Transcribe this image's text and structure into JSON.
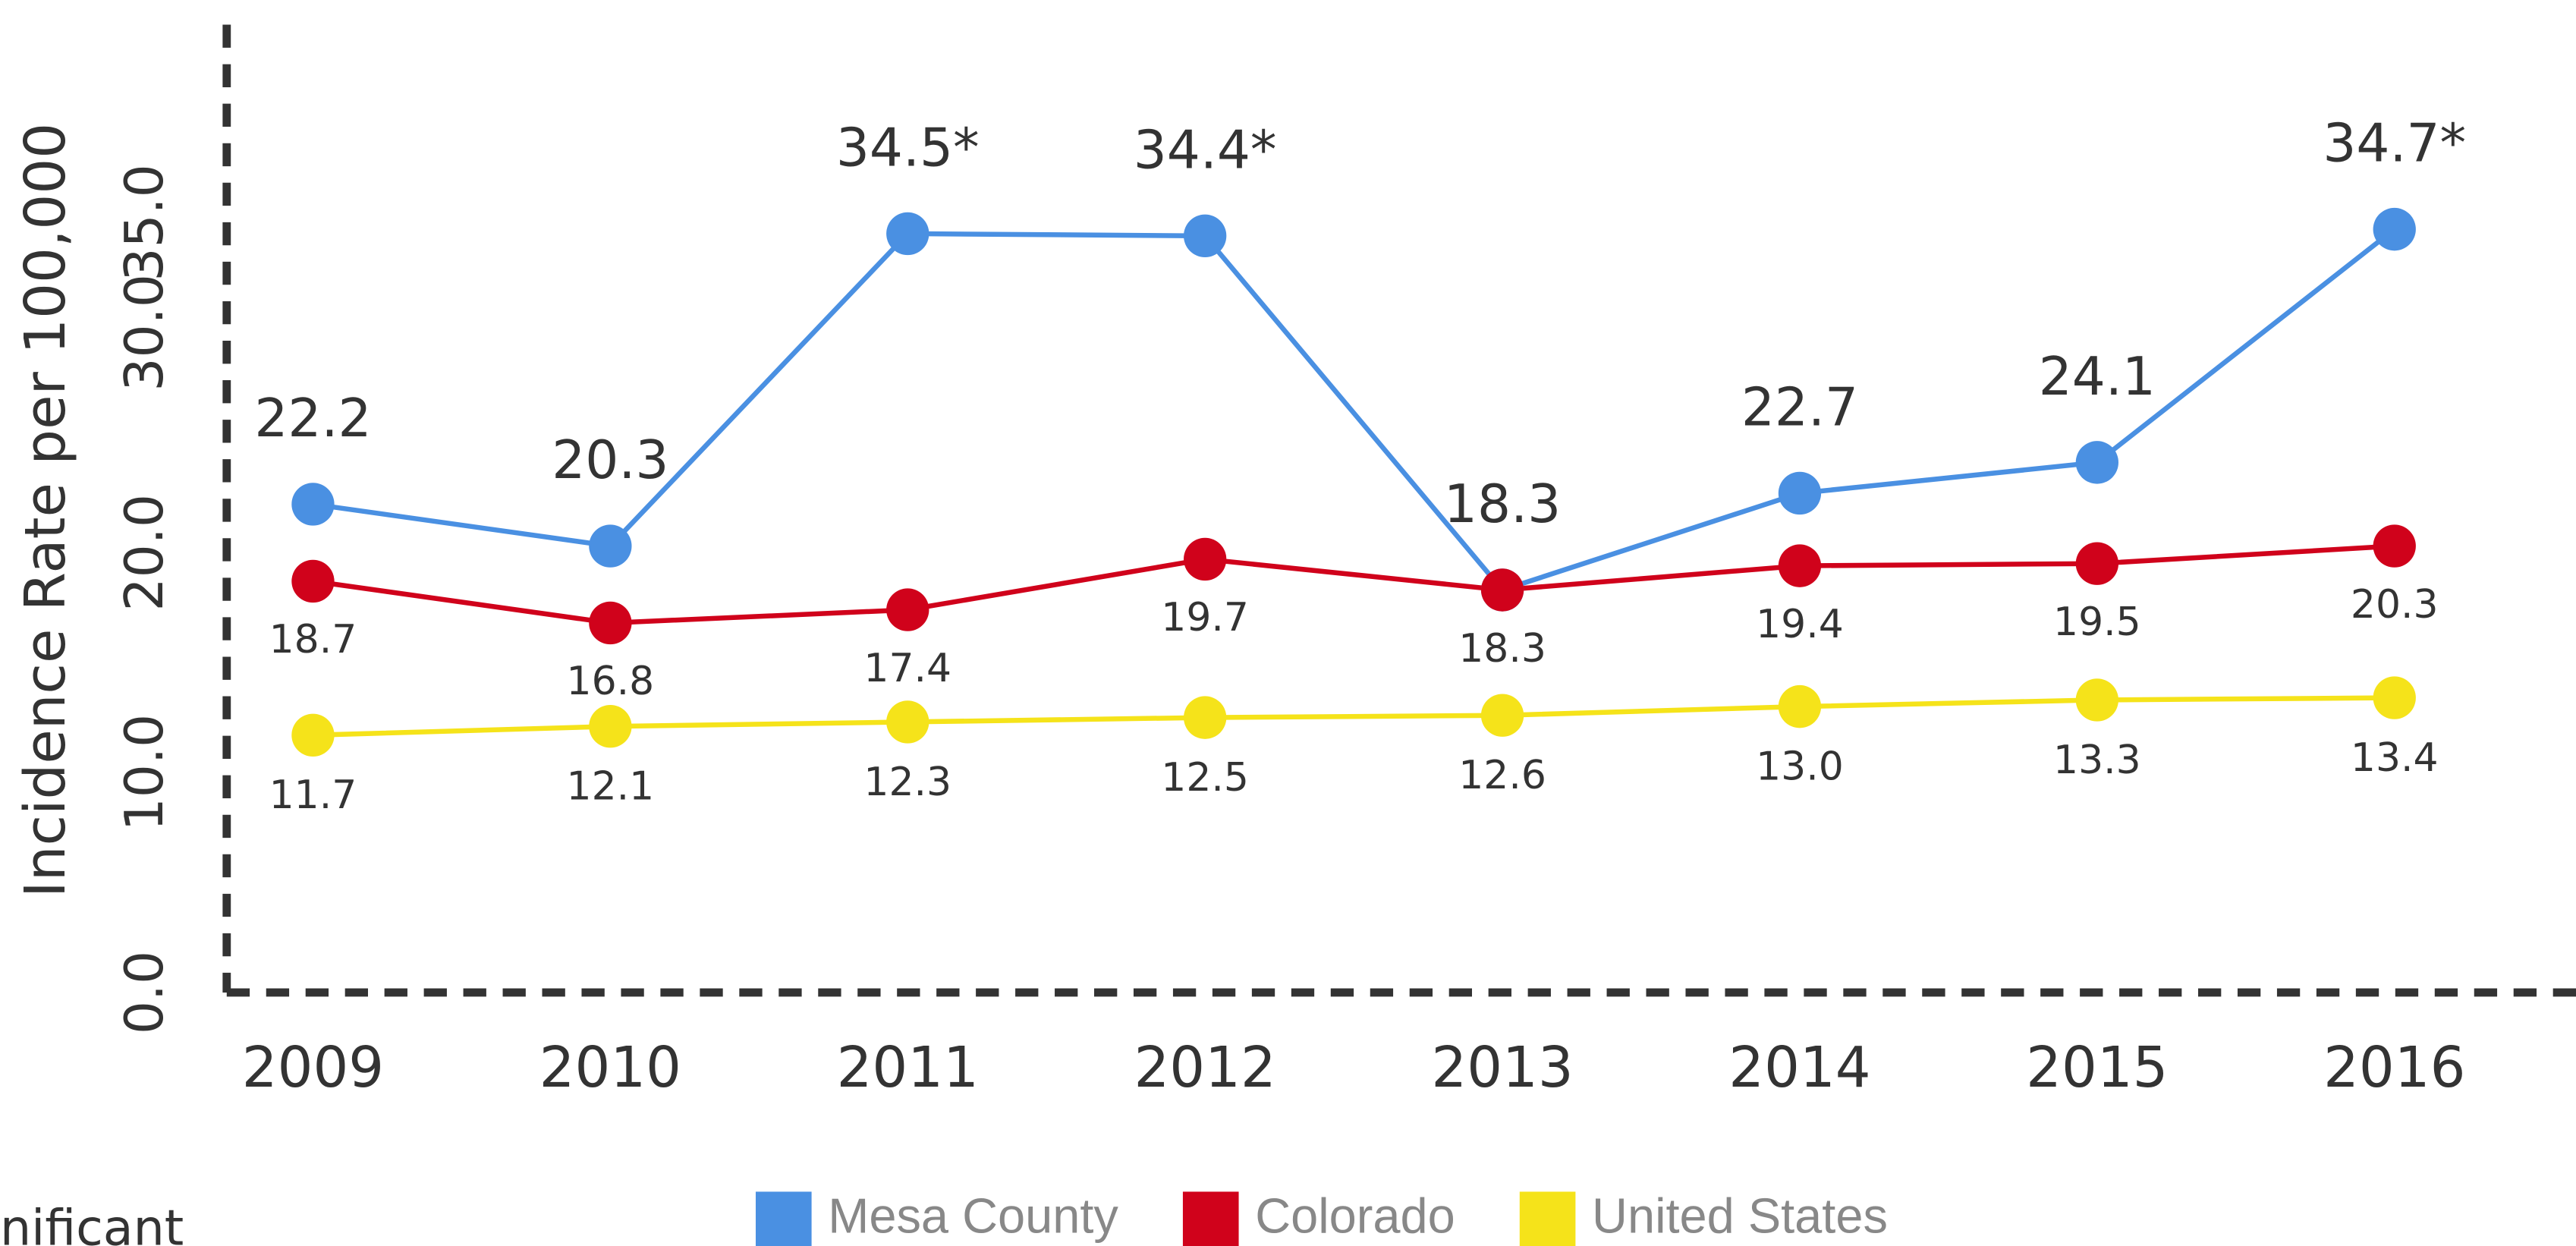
{
  "chart_data": {
    "type": "line",
    "y_label": "Incidence Rate per 100,000",
    "categories": [
      "2009",
      "2010",
      "2011",
      "2012",
      "2013",
      "2014",
      "2015",
      "2016"
    ],
    "series": [
      {
        "name": "Mesa County",
        "color": "#4a90e2",
        "values": [
          22.2,
          20.3,
          34.5,
          34.4,
          18.3,
          22.7,
          24.1,
          34.7
        ],
        "value_labels": [
          "22.2",
          "20.3",
          "34.5*",
          "34.4*",
          "18.3",
          "22.7",
          "24.1",
          "34.7*"
        ]
      },
      {
        "name": "Colorado",
        "color": "#d0021b",
        "values": [
          18.7,
          16.8,
          17.4,
          19.7,
          18.3,
          19.4,
          19.5,
          20.3
        ],
        "value_labels": [
          "18.7",
          "16.8",
          "17.4",
          "19.7",
          "18.3",
          "19.4",
          "19.5",
          "20.3"
        ]
      },
      {
        "name": "United States",
        "color": "#f5e31a",
        "values": [
          11.7,
          12.1,
          12.3,
          12.5,
          12.6,
          13.0,
          13.3,
          13.4
        ],
        "value_labels": [
          "11.7",
          "12.1",
          "12.3",
          "12.5",
          "12.6",
          "13.0",
          "13.3",
          "13.4"
        ]
      }
    ],
    "ylim": [
      0,
      44
    ],
    "yticks": [
      {
        "value": 0,
        "label": "0.0"
      },
      {
        "value": 10,
        "label": "10.0"
      },
      {
        "value": 20,
        "label": "20.0"
      },
      {
        "value": 30,
        "label": "30.0"
      },
      {
        "value": 35,
        "label": "35.0"
      }
    ],
    "grid": false,
    "legend": "bottom",
    "footnote": "nificant"
  }
}
